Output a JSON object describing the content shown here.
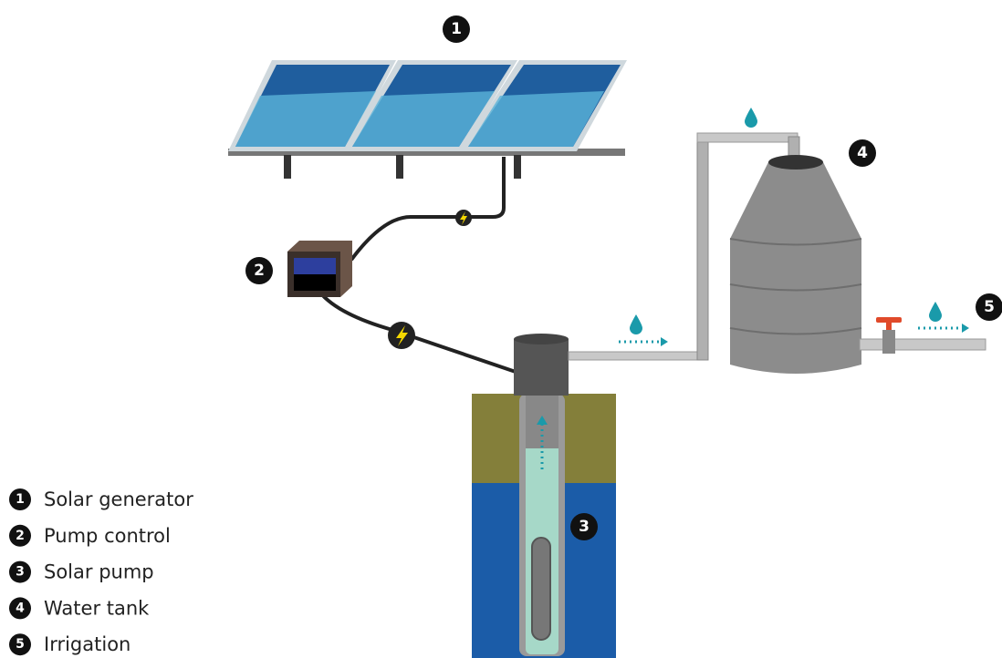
{
  "nodes": [
    {
      "number": "1",
      "label": "Solar generator"
    },
    {
      "number": "2",
      "label": "Pump control"
    },
    {
      "number": "3",
      "label": "Solar pump"
    },
    {
      "number": "4",
      "label": "Water tank"
    },
    {
      "number": "5",
      "label": "Irrigation"
    }
  ]
}
